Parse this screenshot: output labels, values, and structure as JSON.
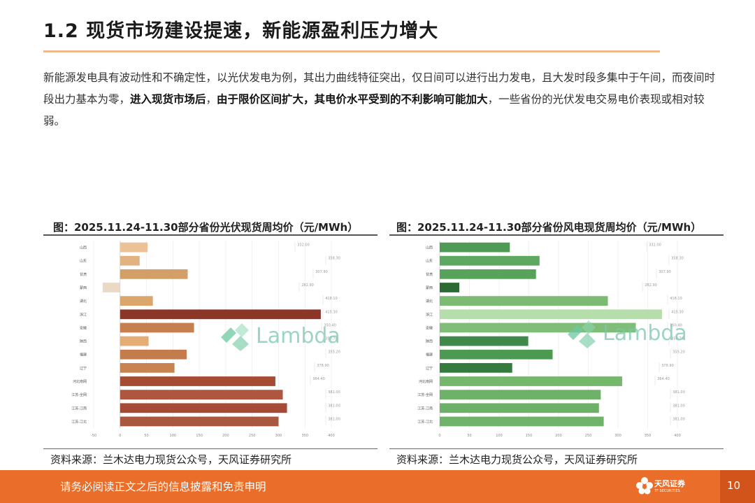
{
  "page": {
    "title": "1.2 现货市场建设提速，新能源盈利压力增大",
    "paragraph": {
      "part1": "新能源发电具有波动性和不确定性，以光伏发电为例，其出力曲线特征突出，仅日间可以进行出力发电，且大发时段多集中于午间，而夜间时段出力基本为零，",
      "bold1": "进入现货市场后",
      "part2": "，",
      "bold2": "由于限价区间扩大，其电价水平受到的不利影响可能加大",
      "part3": "，一些省份的光伏发电交易电价表现或相对较弱。"
    }
  },
  "figures": [
    {
      "title": "图：2025.11.24-11.30部分省份光伏现货周均价（元/MWh）",
      "source": "资料来源：兰木达电力现货公众号，天风证券研究所",
      "watermark": "Lambda"
    },
    {
      "title": "图：2025.11.24-11.30部分省份风电现货周均价（元/MWh）",
      "source": "资料来源：兰木达电力现货公众号，天风证券研究所",
      "watermark": "Lambda"
    }
  ],
  "chart_data": [
    {
      "type": "bar",
      "orientation": "horizontal",
      "title": "图：2025.11.24-11.30部分省份光伏现货周均价（元/MWh）",
      "categories": [
        "山西",
        "山东",
        "甘肃",
        "蒙西",
        "湖北",
        "浙江",
        "安徽",
        "陕西",
        "福建",
        "辽宁",
        "河北南网",
        "江苏-全网",
        "江苏-江南",
        "江苏-江北"
      ],
      "values": [
        52,
        37,
        128,
        -33,
        62,
        380,
        140,
        54,
        126,
        103,
        294,
        308,
        316,
        300
      ],
      "colors": [
        "#ebc195",
        "#e3b282",
        "#d29f67",
        "#ead9c4",
        "#dba66c",
        "#8c3628",
        "#c77f50",
        "#e5ad74",
        "#c57c4d",
        "#c98350",
        "#a64c35",
        "#ae563f",
        "#a44a35",
        "#aa573f"
      ],
      "xlim": [
        -50,
        400
      ],
      "xticks": [
        "-50",
        "0",
        "50",
        "100",
        "150",
        "200",
        "250",
        "300",
        "350",
        "400"
      ],
      "value_labels": [
        "332.00",
        "358.30",
        "307.90",
        "282.90",
        "418.10",
        "415.30",
        "350.40",
        "350.70",
        "355.20",
        "378.90",
        "364.40",
        "381.00",
        "381.00",
        "381.00"
      ],
      "grid": true
    },
    {
      "type": "bar",
      "orientation": "horizontal",
      "title": "图：2025.11.24-11.30部分省份风电现货周均价（元/MWh）",
      "categories": [
        "山西",
        "山东",
        "甘肃",
        "蒙西",
        "湖北",
        "浙江",
        "安徽",
        "陕西",
        "福建",
        "辽宁",
        "河北南网",
        "江苏-全网",
        "江苏-江南",
        "江苏-江北"
      ],
      "values": [
        118,
        168,
        162,
        33,
        283,
        374,
        330,
        149,
        190,
        122,
        307,
        271,
        268,
        276
      ],
      "colors": [
        "#4f9a55",
        "#5fa861",
        "#58a35b",
        "#2d6a34",
        "#7bbb72",
        "#b6deaa",
        "#7fbd78",
        "#3f8a4a",
        "#4c9a52",
        "#347b3e",
        "#75b86c",
        "#6eb269",
        "#6db168",
        "#70b36a"
      ],
      "xlim": [
        0,
        400
      ],
      "xticks": [
        "0",
        "50",
        "100",
        "150",
        "200",
        "250",
        "300",
        "350",
        "400"
      ],
      "value_labels": [
        "332.00",
        "358.30",
        "307.90",
        "282.90",
        "418.10",
        "415.30",
        "350.40",
        "350.70",
        "355.20",
        "378.90",
        "364.40",
        "381.00",
        "381.00",
        "381.00"
      ],
      "grid": true
    }
  ],
  "footer": {
    "disclaimer": "请务必阅读正文之后的信息披露和免责申明",
    "brand": "天风证券",
    "brand_sub": "TF SECURITIES",
    "page_number": "10",
    "color": "#ea6d2a"
  }
}
